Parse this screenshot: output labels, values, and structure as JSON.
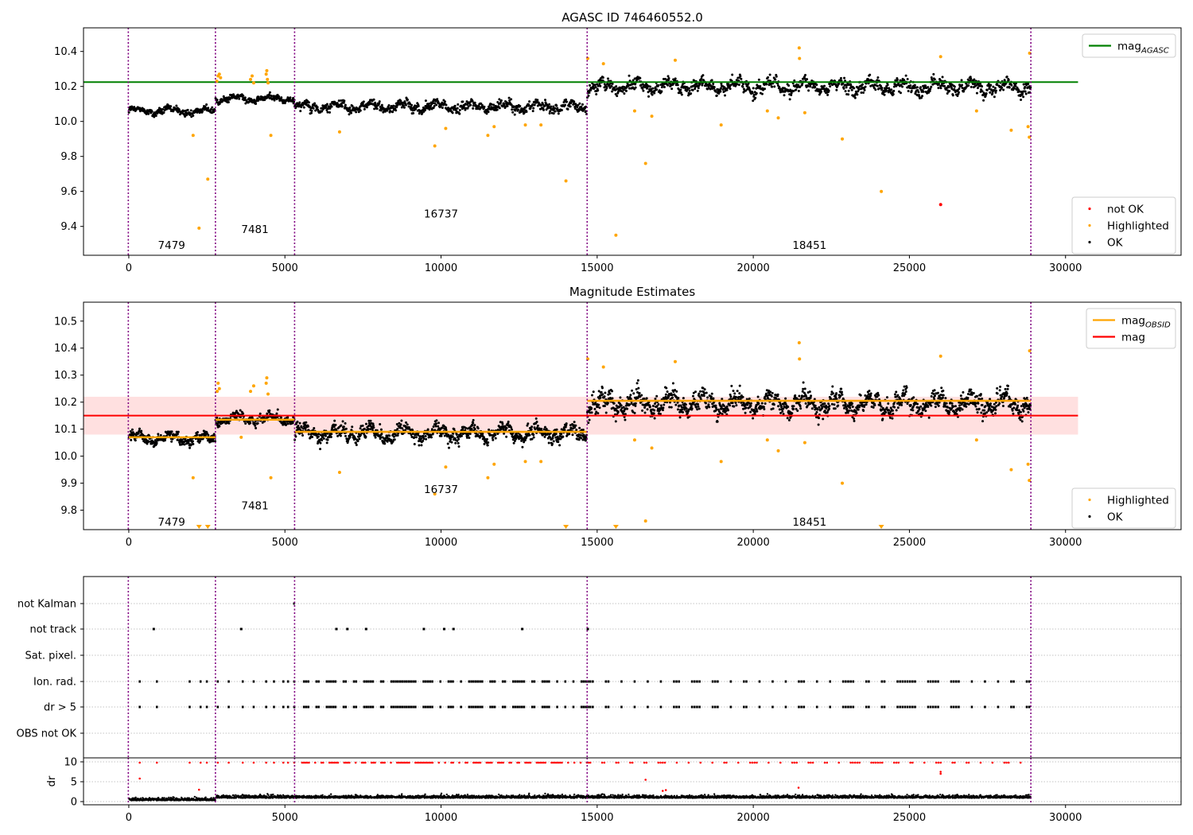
{
  "colors": {
    "ok": "#000000",
    "highlighted": "#ffa500",
    "not_ok": "#ff0000",
    "agasc_line": "#008000",
    "obsid_line": "#ffa500",
    "mag_line": "#ff0000",
    "mag_band": "#ffe0e0",
    "obs_divider": "#800080",
    "grid": "#b0b0b0"
  },
  "chart_data": [
    {
      "id": "agasc",
      "type": "scatter",
      "title": "AGASC ID 746460552.0",
      "xlim": [
        -1450,
        33700
      ],
      "ylim": [
        9.235,
        10.535
      ],
      "xticks": [
        0,
        5000,
        10000,
        15000,
        20000,
        25000,
        30000
      ],
      "yticks": [
        9.4,
        9.6,
        9.8,
        10.0,
        10.2,
        10.4
      ],
      "ytick_labels": [
        "9.4",
        "9.6",
        "9.8",
        "10.0",
        "10.2",
        "10.4"
      ],
      "obs_boundaries": [
        -15,
        2775,
        5310,
        14680,
        28890
      ],
      "obs_labels": [
        {
          "text": "7479",
          "x": 1370,
          "y": 9.29
        },
        {
          "text": "7481",
          "x": 4040,
          "y": 9.38
        },
        {
          "text": "16737",
          "x": 10000,
          "y": 9.47
        },
        {
          "text": "18451",
          "x": 21800,
          "y": 9.29
        }
      ],
      "segments": [
        {
          "x0": 0,
          "x1": 2775,
          "mean": 10.06,
          "spread": 0.055
        },
        {
          "x0": 2775,
          "x1": 5310,
          "mean": 10.13,
          "spread": 0.05
        },
        {
          "x0": 5310,
          "x1": 14680,
          "mean": 10.085,
          "spread": 0.075
        },
        {
          "x0": 14680,
          "x1": 28890,
          "mean": 10.2,
          "spread": 0.1
        }
      ],
      "hlines": [
        {
          "name": "mag_AGASC",
          "y": 10.225,
          "x0": -1450,
          "x1": 30400,
          "color": "#008000"
        }
      ],
      "highlighted": [
        [
          2060,
          9.92
        ],
        [
          2250,
          9.39
        ],
        [
          2530,
          9.67
        ],
        [
          2820,
          10.23
        ],
        [
          2860,
          10.26
        ],
        [
          2900,
          10.27
        ],
        [
          2940,
          10.25
        ],
        [
          3900,
          10.24
        ],
        [
          3950,
          10.26
        ],
        [
          4000,
          10.22
        ],
        [
          4400,
          10.27
        ],
        [
          4420,
          10.29
        ],
        [
          4440,
          10.24
        ],
        [
          4460,
          10.22
        ],
        [
          4550,
          9.92
        ],
        [
          6750,
          9.94
        ],
        [
          9800,
          9.86
        ],
        [
          10150,
          9.96
        ],
        [
          11500,
          9.92
        ],
        [
          11700,
          9.97
        ],
        [
          12700,
          9.98
        ],
        [
          13200,
          9.98
        ],
        [
          14000,
          9.66
        ],
        [
          14700,
          10.36
        ],
        [
          15200,
          10.33
        ],
        [
          15600,
          9.35
        ],
        [
          16200,
          10.06
        ],
        [
          16550,
          9.76
        ],
        [
          16750,
          10.03
        ],
        [
          17500,
          10.35
        ],
        [
          18970,
          9.98
        ],
        [
          20450,
          10.06
        ],
        [
          20800,
          10.02
        ],
        [
          21470,
          10.42
        ],
        [
          21480,
          10.36
        ],
        [
          21650,
          10.05
        ],
        [
          22850,
          9.9
        ],
        [
          24100,
          9.6
        ],
        [
          26000,
          10.37
        ],
        [
          27150,
          10.06
        ],
        [
          28260,
          9.95
        ],
        [
          28800,
          9.97
        ],
        [
          28840,
          9.91
        ],
        [
          28850,
          10.39
        ]
      ],
      "not_ok": [
        [
          26000,
          9.525
        ]
      ],
      "legend_top": [
        {
          "label": "mag",
          "subscript": "AGASC",
          "color": "#008000"
        }
      ],
      "legend_bottom": [
        {
          "label": "not OK",
          "color": "#ff0000"
        },
        {
          "label": "Highlighted",
          "color": "#ffa500"
        },
        {
          "label": "OK",
          "color": "#000000"
        }
      ]
    },
    {
      "id": "estimates",
      "type": "scatter",
      "title": "Magnitude Estimates",
      "xlim": [
        -1450,
        33700
      ],
      "ylim": [
        9.728,
        10.57
      ],
      "xticks": [
        0,
        5000,
        10000,
        15000,
        20000,
        25000,
        30000
      ],
      "yticks": [
        9.8,
        9.9,
        10.0,
        10.1,
        10.2,
        10.3,
        10.4,
        10.5
      ],
      "ytick_labels": [
        "9.8",
        "9.9",
        "10.0",
        "10.1",
        "10.2",
        "10.3",
        "10.4",
        "10.5"
      ],
      "obs_boundaries": [
        -15,
        2775,
        5310,
        14680,
        28890
      ],
      "obs_labels": [
        {
          "text": "7479",
          "x": 1370,
          "y": 9.755
        },
        {
          "text": "7481",
          "x": 4040,
          "y": 9.815
        },
        {
          "text": "16737",
          "x": 10000,
          "y": 9.875
        },
        {
          "text": "18451",
          "x": 21800,
          "y": 9.755
        }
      ],
      "segments": [
        {
          "x0": 0,
          "x1": 2775,
          "mean": 10.065,
          "spread": 0.055
        },
        {
          "x0": 2775,
          "x1": 5310,
          "mean": 10.14,
          "spread": 0.05
        },
        {
          "x0": 5310,
          "x1": 14680,
          "mean": 10.085,
          "spread": 0.075
        },
        {
          "x0": 14680,
          "x1": 28890,
          "mean": 10.195,
          "spread": 0.1
        }
      ],
      "obsid_means": [
        {
          "x0": 0,
          "x1": 2775,
          "y": 10.07
        },
        {
          "x0": 2775,
          "x1": 5310,
          "y": 10.135
        },
        {
          "x0": 5310,
          "x1": 14680,
          "y": 10.09
        },
        {
          "x0": 14680,
          "x1": 28890,
          "y": 10.205
        }
      ],
      "mag": {
        "y": 10.15,
        "band": [
          10.08,
          10.22
        ],
        "x0": -1450,
        "x1": 30400
      },
      "highlighted": [
        [
          2060,
          9.92
        ],
        [
          2830,
          10.24
        ],
        [
          2860,
          10.27
        ],
        [
          2900,
          10.25
        ],
        [
          3600,
          10.07
        ],
        [
          3900,
          10.24
        ],
        [
          4000,
          10.26
        ],
        [
          4400,
          10.27
        ],
        [
          4420,
          10.29
        ],
        [
          4460,
          10.23
        ],
        [
          4550,
          9.92
        ],
        [
          6750,
          9.94
        ],
        [
          9800,
          9.86
        ],
        [
          10150,
          9.96
        ],
        [
          11500,
          9.92
        ],
        [
          11700,
          9.97
        ],
        [
          12700,
          9.98
        ],
        [
          13200,
          9.98
        ],
        [
          14700,
          10.36
        ],
        [
          15200,
          10.33
        ],
        [
          16200,
          10.06
        ],
        [
          16550,
          9.76
        ],
        [
          16750,
          10.03
        ],
        [
          17500,
          10.35
        ],
        [
          18970,
          9.98
        ],
        [
          20450,
          10.06
        ],
        [
          20800,
          10.02
        ],
        [
          21470,
          10.42
        ],
        [
          21480,
          10.36
        ],
        [
          21650,
          10.05
        ],
        [
          22850,
          9.9
        ],
        [
          26000,
          10.37
        ],
        [
          27150,
          10.06
        ],
        [
          28260,
          9.95
        ],
        [
          28800,
          9.97
        ],
        [
          28840,
          9.91
        ],
        [
          28850,
          10.39
        ]
      ],
      "clipped_low": [
        2250,
        2530,
        14000,
        15600,
        24100
      ],
      "legend_top": [
        {
          "label": "mag",
          "subscript": "OBSID",
          "color": "#ffa500"
        },
        {
          "label": "mag",
          "subscript": "",
          "color": "#ff0000"
        }
      ],
      "legend_bottom": [
        {
          "label": "Highlighted",
          "color": "#ffa500"
        },
        {
          "label": "OK",
          "color": "#000000"
        }
      ]
    },
    {
      "id": "flags",
      "type": "scatter",
      "xlim": [
        -1450,
        33700
      ],
      "categories": [
        "not Kalman",
        "not track",
        "Sat. pixel.",
        "Ion. rad.",
        "dr > 5",
        "OBS not OK"
      ],
      "obs_boundaries": [
        -15,
        2775,
        5310,
        14680,
        28890
      ],
      "events": {
        "not Kalman": [
          5290
        ],
        "not track": [
          800,
          3600,
          6650,
          7000,
          7600,
          9450,
          10100,
          10400,
          12600,
          14700
        ],
        "ion_dr_events": [
          350,
          900,
          1950,
          2300,
          2500,
          2850,
          3200,
          3650,
          4000,
          4400,
          4650,
          4950,
          5100,
          5300
        ]
      }
    },
    {
      "id": "dr",
      "type": "scatter",
      "xlim": [
        -1450,
        33700
      ],
      "ylim": [
        -0.8,
        11
      ],
      "ylabel": "dr",
      "xticks": [
        0,
        5000,
        10000,
        15000,
        20000,
        25000,
        30000
      ],
      "yticks": [
        0,
        5,
        10
      ],
      "ytick_labels": [
        "0",
        "5",
        "10"
      ],
      "obs_boundaries": [
        -15,
        2775,
        5310,
        14680,
        28890
      ],
      "outliers": [
        [
          350,
          5.8
        ],
        [
          2250,
          3.0
        ],
        [
          16550,
          5.5
        ],
        [
          17100,
          2.7
        ],
        [
          17200,
          2.9
        ],
        [
          21450,
          3.5
        ],
        [
          26000,
          7.5
        ],
        [
          26000,
          7.0
        ]
      ]
    }
  ]
}
